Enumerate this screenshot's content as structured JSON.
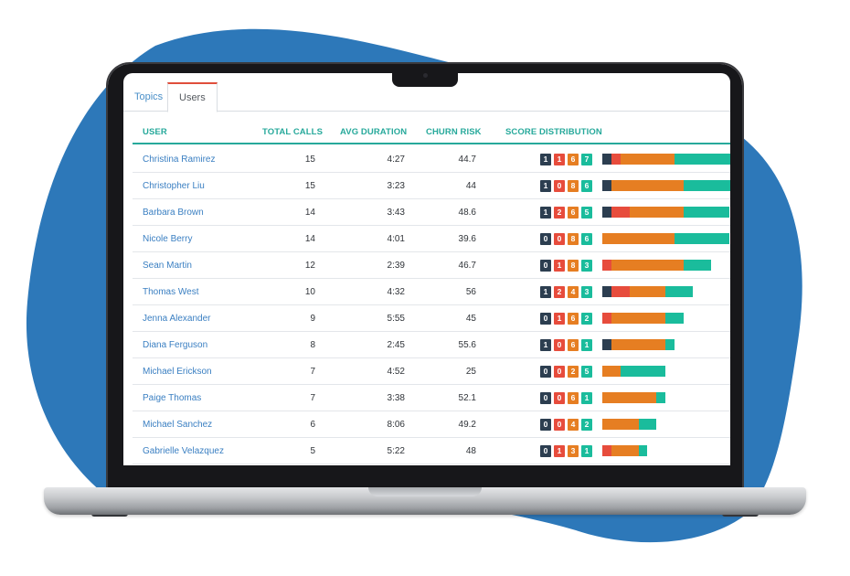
{
  "tabs": [
    {
      "label": "Topics",
      "active": false
    },
    {
      "label": "Users",
      "active": true
    }
  ],
  "columns": {
    "user": "USER",
    "total_calls": "TOTAL CALLS",
    "avg_duration": "AVG DURATION",
    "churn_risk": "CHURN RISK",
    "score_distribution": "SCORE DISTRIBUTION"
  },
  "colors": {
    "score_1": "#2c3e50",
    "score_2": "#e74c3c",
    "score_3": "#e67e22",
    "score_4": "#1abc9c",
    "accent": "#27a99b",
    "active_tab": "#e04e3b",
    "blob": "#2d78b9"
  },
  "rows": [
    {
      "user": "Christina Ramirez",
      "total_calls": "15",
      "avg_duration": "4:27",
      "churn_risk": "44.7",
      "scores": [
        "1",
        "1",
        "6",
        "7"
      ]
    },
    {
      "user": "Christopher Liu",
      "total_calls": "15",
      "avg_duration": "3:23",
      "churn_risk": "44",
      "scores": [
        "1",
        "0",
        "8",
        "6"
      ]
    },
    {
      "user": "Barbara Brown",
      "total_calls": "14",
      "avg_duration": "3:43",
      "churn_risk": "48.6",
      "scores": [
        "1",
        "2",
        "6",
        "5"
      ]
    },
    {
      "user": "Nicole Berry",
      "total_calls": "14",
      "avg_duration": "4:01",
      "churn_risk": "39.6",
      "scores": [
        "0",
        "0",
        "8",
        "6"
      ]
    },
    {
      "user": "Sean Martin",
      "total_calls": "12",
      "avg_duration": "2:39",
      "churn_risk": "46.7",
      "scores": [
        "0",
        "1",
        "8",
        "3"
      ]
    },
    {
      "user": "Thomas West",
      "total_calls": "10",
      "avg_duration": "4:32",
      "churn_risk": "56",
      "scores": [
        "1",
        "2",
        "4",
        "3"
      ]
    },
    {
      "user": "Jenna Alexander",
      "total_calls": "9",
      "avg_duration": "5:55",
      "churn_risk": "45",
      "scores": [
        "0",
        "1",
        "6",
        "2"
      ]
    },
    {
      "user": "Diana Ferguson",
      "total_calls": "8",
      "avg_duration": "2:45",
      "churn_risk": "55.6",
      "scores": [
        "1",
        "0",
        "6",
        "1"
      ]
    },
    {
      "user": "Michael Erickson",
      "total_calls": "7",
      "avg_duration": "4:52",
      "churn_risk": "25",
      "scores": [
        "0",
        "0",
        "2",
        "5"
      ]
    },
    {
      "user": "Paige Thomas",
      "total_calls": "7",
      "avg_duration": "3:38",
      "churn_risk": "52.1",
      "scores": [
        "0",
        "0",
        "6",
        "1"
      ]
    },
    {
      "user": "Michael Sanchez",
      "total_calls": "6",
      "avg_duration": "8:06",
      "churn_risk": "49.2",
      "scores": [
        "0",
        "0",
        "4",
        "2"
      ]
    },
    {
      "user": "Gabrielle Velazquez",
      "total_calls": "5",
      "avg_duration": "5:22",
      "churn_risk": "48",
      "scores": [
        "0",
        "1",
        "3",
        "1"
      ]
    }
  ]
}
